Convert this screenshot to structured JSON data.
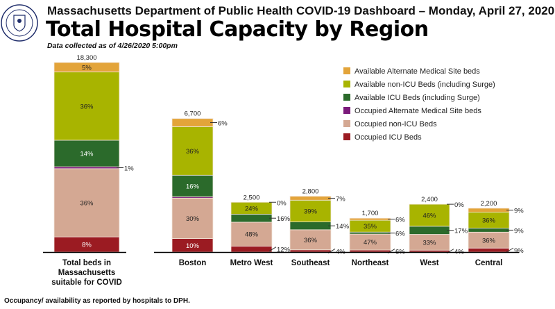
{
  "header": {
    "title": "Massachusetts Department of Public Health COVID-19 Dashboard – Monday, April 27, 2020",
    "subtitle": "Total Hospital Capacity by Region",
    "note": "Data collected as of 4/26/2020 5:00pm"
  },
  "footer": "Occupancy/ availability as reported by hospitals to DPH.",
  "logo": {
    "text": "Massachusetts Department of Public Health"
  },
  "chart_data": {
    "type": "bar",
    "stacked": true,
    "title": "Total Hospital Capacity by Region",
    "legend_position": "right",
    "series": [
      {
        "name": "Occupied ICU Beds",
        "color": "#9B1B22"
      },
      {
        "name": "Occupied non-ICU Beds",
        "color": "#D4A893"
      },
      {
        "name": "Occupied Alternate Medical Site beds",
        "color": "#7B1A7B"
      },
      {
        "name": "Available ICU Beds (including Surge)",
        "color": "#2B6A2B"
      },
      {
        "name": "Available non-ICU Beds (including Surge)",
        "color": "#A8B400"
      },
      {
        "name": "Available Alternate Medical Site beds",
        "color": "#E3A43A"
      }
    ],
    "bars": [
      {
        "category": "Total beds in Massachusetts suitable for COVID",
        "total": "18,300",
        "total_value": 18300,
        "percents": [
          8,
          36,
          1,
          14,
          36,
          5
        ],
        "labels": [
          "8%",
          "36%",
          "1%",
          "14%",
          "36%",
          "5%"
        ]
      },
      {
        "category": "Boston",
        "total": "6,700",
        "total_value": 6700,
        "percents": [
          10,
          30,
          1,
          16,
          36,
          6
        ],
        "labels": [
          "10%",
          "30%",
          "",
          "16%",
          "36%",
          "6%"
        ]
      },
      {
        "category": "Metro West",
        "total": "2,500",
        "total_value": 2500,
        "percents": [
          12,
          48,
          0,
          16,
          24,
          0
        ],
        "labels": [
          "12%",
          "48%",
          "",
          "16%",
          "24%",
          "0%"
        ]
      },
      {
        "category": "Southeast",
        "total": "2,800",
        "total_value": 2800,
        "percents": [
          4,
          36,
          0,
          14,
          39,
          7
        ],
        "labels": [
          "4%",
          "36%",
          "",
          "14%",
          "39%",
          "7%"
        ]
      },
      {
        "category": "Northeast",
        "total": "1,700",
        "total_value": 1700,
        "percents": [
          6,
          47,
          0,
          6,
          35,
          6
        ],
        "labels": [
          "6%",
          "47%",
          "",
          "6%",
          "35%",
          "6%"
        ]
      },
      {
        "category": "West",
        "total": "2,400",
        "total_value": 2400,
        "percents": [
          4,
          33,
          0,
          17,
          46,
          0
        ],
        "labels": [
          "4%",
          "33%",
          "",
          "17%",
          "46%",
          "0%"
        ]
      },
      {
        "category": "Central",
        "total": "2,200",
        "total_value": 2200,
        "percents": [
          9,
          36,
          0,
          9,
          36,
          9
        ],
        "labels": [
          "9%",
          "36%",
          "",
          "9%",
          "36%",
          "9%"
        ]
      }
    ]
  }
}
